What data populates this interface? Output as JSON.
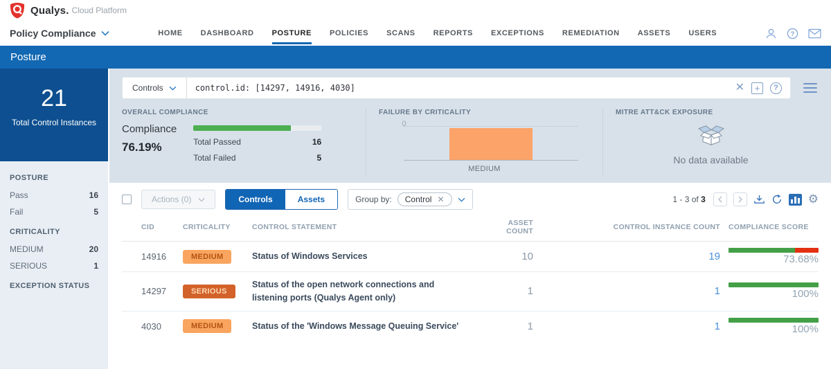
{
  "header": {
    "brand": {
      "name": "Qualys.",
      "suffix": "Cloud Platform"
    },
    "app_menu": "Policy Compliance",
    "nav": [
      {
        "label": "HOME"
      },
      {
        "label": "DASHBOARD"
      },
      {
        "label": "POSTURE",
        "active": true
      },
      {
        "label": "POLICIES"
      },
      {
        "label": "SCANS"
      },
      {
        "label": "REPORTS"
      },
      {
        "label": "EXCEPTIONS"
      },
      {
        "label": "REMEDIATION"
      },
      {
        "label": "ASSETS"
      },
      {
        "label": "USERS"
      }
    ],
    "icons": [
      "user-icon",
      "help-icon",
      "mail-icon"
    ]
  },
  "banner": {
    "title": "Posture"
  },
  "sidebar": {
    "total": {
      "value": "21",
      "label": "Total Control Instances"
    },
    "sections": [
      {
        "title": "POSTURE",
        "items": [
          {
            "label": "Pass",
            "value": "16"
          },
          {
            "label": "Fail",
            "value": "5"
          }
        ]
      },
      {
        "title": "CRITICALITY",
        "items": [
          {
            "label": "MEDIUM",
            "value": "20"
          },
          {
            "label": "SERIOUS",
            "value": "1"
          }
        ]
      },
      {
        "title": "EXCEPTION STATUS",
        "items": []
      }
    ]
  },
  "search": {
    "scope": "Controls",
    "query": "control.id: [14297, 14916, 4030]"
  },
  "summary": {
    "overall": {
      "title": "OVERALL COMPLIANCE",
      "label": "Compliance",
      "percent": "76.19%",
      "bar_percent": 76.19,
      "passed_label": "Total Passed",
      "passed": "16",
      "failed_label": "Total Failed",
      "failed": "5"
    },
    "failure": {
      "title": "FAILURE BY CRITICALITY",
      "tick_zero": "0",
      "chart_data": {
        "type": "bar",
        "categories": [
          "MEDIUM"
        ],
        "values": [
          5
        ],
        "title": "FAILURE BY CRITICALITY",
        "xlabel": "",
        "ylabel": "",
        "ylim": [
          0,
          5
        ],
        "bar_color": "#fba368",
        "grid": "dotted-top"
      }
    },
    "mitre": {
      "title": "MITRE ATT&CK EXPOSURE",
      "empty_text": "No data available"
    }
  },
  "toolbar": {
    "actions_label": "Actions (0)",
    "controls_label": "Controls",
    "assets_label": "Assets",
    "group_by_label": "Group by:",
    "group_chip": "Control",
    "pagination": {
      "range": "1 - 3 of",
      "total": "3"
    }
  },
  "table": {
    "columns": [
      "CID",
      "CRITICALITY",
      "CONTROL STATEMENT",
      "ASSET COUNT",
      "CONTROL INSTANCE COUNT",
      "COMPLIANCE SCORE"
    ],
    "rows": [
      {
        "cid": "14916",
        "criticality": "MEDIUM",
        "statement": "Status of Windows Services",
        "asset_count": "10",
        "instance_count": "19",
        "score": "73.68%",
        "score_value": 73.68
      },
      {
        "cid": "14297",
        "criticality": "SERIOUS",
        "statement": "Status of the open network connections and listening ports (Qualys Agent only)",
        "asset_count": "1",
        "instance_count": "1",
        "score": "100%",
        "score_value": 100
      },
      {
        "cid": "4030",
        "criticality": "MEDIUM",
        "statement": "Status of the 'Windows Message Queuing Service'",
        "asset_count": "1",
        "instance_count": "1",
        "score": "100%",
        "score_value": 100
      }
    ]
  },
  "colors": {
    "banner_blue": "#1268b3",
    "sidebar_box_blue": "#0d4f90",
    "accent_blue": "#1165b5",
    "pass_green": "#43a047",
    "fail_red": "#e33012",
    "medium_orange": "#f9a55f",
    "serious_orange": "#d2622a",
    "qualys_red": "#e3332d"
  }
}
